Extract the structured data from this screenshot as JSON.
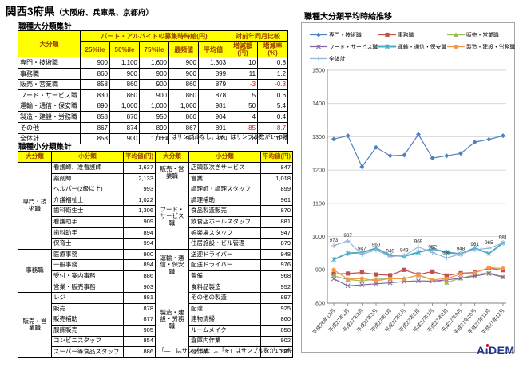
{
  "page": {
    "title_main": "関西3府県",
    "title_sub": "（大阪府、兵庫県、京都府）"
  },
  "major_table": {
    "section_title": "職種大分類集計",
    "header": {
      "category": "大分類",
      "wage_group": "パート・アルバイトの募集時時給(円)",
      "yoy_group": "対前年同月比較",
      "columns": [
        "25%ile",
        "50%ile",
        "75%ile",
        "最頻値",
        "平均値",
        "増減額(円)",
        "増減率(%)"
      ]
    },
    "rows": [
      {
        "label": "専門・技術職",
        "values": [
          "900",
          "1,100",
          "1,600",
          "900",
          "1,303",
          "10",
          "0.8"
        ]
      },
      {
        "label": "事務職",
        "values": [
          "860",
          "900",
          "900",
          "900",
          "899",
          "11",
          "1.2"
        ]
      },
      {
        "label": "販売・営業職",
        "values": [
          "858",
          "860",
          "900",
          "860",
          "879",
          "-3",
          "-0.3"
        ]
      },
      {
        "label": "フード・サービス職",
        "values": [
          "830",
          "860",
          "900",
          "860",
          "878",
          "5",
          "0.6"
        ]
      },
      {
        "label": "運輸・通信・保安職",
        "values": [
          "890",
          "1,000",
          "1,000",
          "1,000",
          "981",
          "50",
          "5.4"
        ]
      },
      {
        "label": "製造・建設・労務職",
        "values": [
          "858",
          "870",
          "950",
          "860",
          "904",
          "4",
          "0.4"
        ]
      },
      {
        "label": "その他",
        "values": [
          "867",
          "874",
          "890",
          "867",
          "891",
          "-85",
          "-8.7"
        ]
      },
      {
        "label": "全体計",
        "values": [
          "858",
          "900",
          "1,000",
          "900",
          "981",
          "8",
          "0.8"
        ]
      }
    ],
    "footnote": "「―」はサンプルなし。「※」はサンプル数が1～5件"
  },
  "minor_table": {
    "section_title": "職種小分類集計",
    "headers": [
      "大分類",
      "小分類",
      "平均値(円)"
    ],
    "left_groups": [
      {
        "category": "専門・技術職",
        "rows": [
          [
            "看護師、准看護師",
            "1,637"
          ],
          [
            "薬剤師",
            "2,133"
          ],
          [
            "ヘルパー(2級以上)",
            "993"
          ],
          [
            "介護福祉士",
            "1,022"
          ],
          [
            "歯科衛生士",
            "1,306"
          ],
          [
            "看護助手",
            "909"
          ],
          [
            "歯科助手",
            "894"
          ],
          [
            "保育士",
            "994"
          ]
        ]
      },
      {
        "category": "事務職",
        "rows": [
          [
            "医療事務",
            "900"
          ],
          [
            "一般事務",
            "894"
          ],
          [
            "受付・案内事務",
            "886"
          ],
          [
            "営業・販売事務",
            "903"
          ]
        ]
      },
      {
        "category": "販売・営業職",
        "rows": [
          [
            "レジ",
            "881"
          ],
          [
            "販売",
            "878"
          ],
          [
            "販売補助",
            "877"
          ],
          [
            "服飾販売",
            "905"
          ],
          [
            "コンビニスタッフ",
            "854"
          ],
          [
            "スーパー等食品スタッフ",
            "886"
          ]
        ]
      }
    ],
    "right_groups": [
      {
        "category": "販売・営業職",
        "rows": [
          [
            "店頭取次ぎサービス",
            "847"
          ],
          [
            "営業",
            "1,018"
          ]
        ]
      },
      {
        "category": "フード・サービス職",
        "rows": [
          [
            "調理師・調理スタッフ",
            "899"
          ],
          [
            "調理補助",
            "961"
          ],
          [
            "食品製造販売",
            "870"
          ],
          [
            "飲食店ホールスタッフ",
            "881"
          ],
          [
            "娯楽場スタッフ",
            "947"
          ],
          [
            "住居施設・ビル管理",
            "879"
          ]
        ]
      },
      {
        "category": "運輸・通信・保安職",
        "rows": [
          [
            "送迎ドライバー",
            "948"
          ],
          [
            "配送ドライバー",
            "976"
          ],
          [
            "警備",
            "968"
          ]
        ]
      },
      {
        "category": "製造・建設・労務職",
        "rows": [
          [
            "食料品製造",
            "952"
          ],
          [
            "その他の製造",
            "897"
          ],
          [
            "配達",
            "925"
          ],
          [
            "建物清掃",
            "860"
          ],
          [
            "ルームメイク",
            "858"
          ],
          [
            "倉庫内作業",
            "902"
          ],
          [
            "軽作業",
            "885"
          ]
        ]
      }
    ],
    "footnote": "「―」はサンプルなし。「※」はサンプル数が1～5件"
  },
  "chart_data": {
    "type": "line",
    "title": "職種大分類平均時給推移",
    "x": [
      "平成26年12月",
      "平成27年1月",
      "平成27年2月",
      "平成27年3月",
      "平成27年4月",
      "平成27年5月",
      "平成27年6月",
      "平成27年7月",
      "平成27年8月",
      "平成27年9月",
      "平成27年10月",
      "平成27年11月",
      "平成27年12月"
    ],
    "ylim": [
      800,
      1500
    ],
    "ytick_step": 100,
    "grid": true,
    "legend_position": "top",
    "series": [
      {
        "name": "専門・技術職",
        "color": "#4F81BD",
        "marker": "diamond",
        "thick": false,
        "labeled": false,
        "values": [
          1293,
          1303,
          1210,
          1268,
          1243,
          1245,
          1307,
          1236,
          1243,
          1250,
          1284,
          1292,
          1303
        ]
      },
      {
        "name": "事務職",
        "color": "#C0504D",
        "marker": "square",
        "thick": false,
        "labeled": false,
        "values": [
          888,
          889,
          892,
          886,
          884,
          900,
          886,
          895,
          883,
          890,
          892,
          905,
          899
        ]
      },
      {
        "name": "販売・営業職",
        "color": "#9BBB59",
        "marker": "triangle",
        "thick": false,
        "labeled": false,
        "values": [
          882,
          871,
          867,
          872,
          873,
          874,
          884,
          869,
          862,
          875,
          885,
          892,
          879
        ]
      },
      {
        "name": "フード・サービス職",
        "color": "#8064A2",
        "marker": "x",
        "thick": false,
        "labeled": false,
        "values": [
          873,
          852,
          855,
          858,
          861,
          865,
          867,
          866,
          870,
          875,
          881,
          889,
          878
        ]
      },
      {
        "name": "運輸・通信・保安職",
        "color": "#4BACC6",
        "marker": "asterisk",
        "thick": true,
        "labeled": false,
        "values": [
          931,
          950,
          952,
          965,
          944,
          941,
          953,
          963,
          953,
          948,
          966,
          949,
          981
        ]
      },
      {
        "name": "製造・建設・労務職",
        "color": "#F79646",
        "marker": "circle",
        "thick": false,
        "labeled": false,
        "values": [
          900,
          872,
          874,
          867,
          874,
          873,
          885,
          870,
          874,
          887,
          891,
          907,
          904
        ]
      },
      {
        "name": "全体計",
        "color": "#95B3D7",
        "marker": "plus",
        "thick": false,
        "labeled": true,
        "values": [
          973,
          987,
          947,
          960,
          940,
          943,
          969,
          952,
          936,
          948,
          961,
          965,
          981
        ]
      }
    ]
  },
  "logo": {
    "text": "AiDEM"
  }
}
